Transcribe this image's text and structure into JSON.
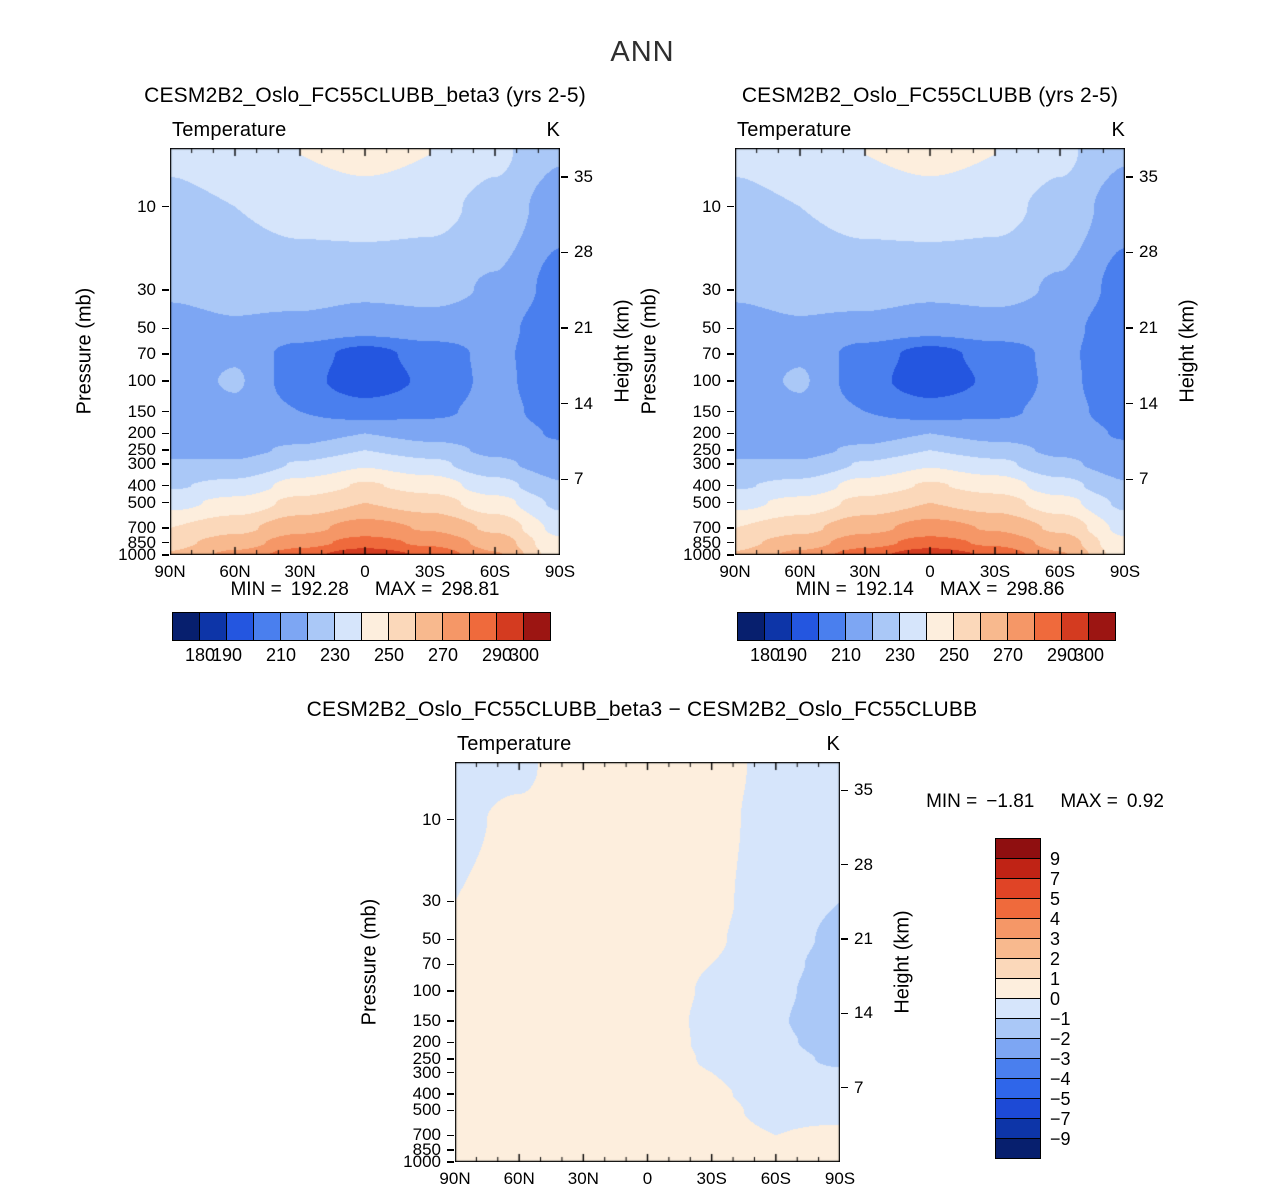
{
  "page": {
    "title": "ANN",
    "background": "#ffffff"
  },
  "panels": [
    {
      "title": "CESM2B2_Oslo_FC55CLUBB_beta3 (yrs 2-5)",
      "var_label": "Temperature",
      "units": "K",
      "min_label": "MIN =",
      "min": "192.28",
      "max_label": "MAX =",
      "max": "298.81"
    },
    {
      "title": "CESM2B2_Oslo_FC55CLUBB (yrs 2-5)",
      "var_label": "Temperature",
      "units": "K",
      "min_label": "MIN =",
      "min": "192.14",
      "max_label": "MAX =",
      "max": "298.86"
    },
    {
      "title": "CESM2B2_Oslo_FC55CLUBB_beta3 − CESM2B2_Oslo_FC55CLUBB",
      "var_label": "Temperature",
      "units": "K",
      "min_label": "MIN =",
      "min": "−1.81",
      "max_label": "MAX =",
      "max": "0.92"
    }
  ],
  "axes": {
    "pressure_label": "Pressure (mb)",
    "height_label": "Height (km)",
    "pressure_ticks": [
      10,
      30,
      50,
      70,
      100,
      150,
      200,
      250,
      300,
      400,
      500,
      700,
      850,
      1000
    ],
    "height_ticks": [
      35,
      28,
      21,
      14,
      7
    ],
    "lat_ticks": [
      {
        "lat": 90,
        "label": "90N"
      },
      {
        "lat": 60,
        "label": "60N"
      },
      {
        "lat": 30,
        "label": "30N"
      },
      {
        "lat": 0,
        "label": "0"
      },
      {
        "lat": -30,
        "label": "30S"
      },
      {
        "lat": -60,
        "label": "60S"
      },
      {
        "lat": -90,
        "label": "90S"
      }
    ]
  },
  "colorbars": {
    "main": {
      "boundaries": [
        180,
        190,
        200,
        210,
        220,
        230,
        240,
        250,
        260,
        270,
        280,
        290,
        300
      ],
      "tick_labels": [
        "180",
        "190",
        "210",
        "230",
        "250",
        "270",
        "290",
        "300"
      ],
      "tick_boundary_indices": [
        0,
        1,
        3,
        5,
        7,
        9,
        11,
        12
      ],
      "colors": [
        "#071f6e",
        "#0d35a8",
        "#2456e0",
        "#4a7fee",
        "#7da6f3",
        "#aac8f7",
        "#d6e5fb",
        "#fdeedd",
        "#fbd8ba",
        "#f8b98e",
        "#f59767",
        "#ef6a3c",
        "#d43b20",
        "#9c1512"
      ]
    },
    "diff": {
      "boundaries": [
        -9,
        -7,
        -5,
        -4,
        -3,
        -2,
        -1,
        0,
        1,
        2,
        3,
        4,
        5,
        7,
        9
      ],
      "tick_labels_top_to_bottom": [
        "9",
        "7",
        "5",
        "4",
        "3",
        "2",
        "1",
        "0",
        "−1",
        "−2",
        "−3",
        "−4",
        "−5",
        "−7",
        "−9"
      ],
      "colors": [
        "#071f6e",
        "#0d35a8",
        "#1d4ad6",
        "#2f66ea",
        "#4a7fee",
        "#7da6f3",
        "#aac8f7",
        "#d6e5fb",
        "#fdeedd",
        "#fbd8ba",
        "#f8b98e",
        "#f59767",
        "#ef6a3c",
        "#e04426",
        "#c02315",
        "#8f0f10"
      ]
    }
  },
  "chart_data": [
    {
      "id": "model_beta3",
      "type": "heatmap",
      "style": "filled-contour",
      "title": "CESM2B2_Oslo_FC55CLUBB_beta3 (yrs 2-5)",
      "variable": "Temperature",
      "units": "K",
      "x_axis": "latitude",
      "y_axis": "pressure (mb, log scale)",
      "x_tick_labels": [
        "90N",
        "60N",
        "30N",
        "0",
        "30S",
        "60S",
        "90S"
      ],
      "y_tick_labels": [
        10,
        30,
        50,
        70,
        100,
        150,
        200,
        250,
        300,
        400,
        500,
        700,
        850,
        1000
      ],
      "y2_tick_labels_km": [
        35,
        28,
        21,
        14,
        7
      ],
      "y_range_mb": [
        4.6,
        1000
      ],
      "min": 192.28,
      "max": 298.81,
      "lat_deg": [
        90,
        60,
        30,
        0,
        -30,
        -60,
        -90
      ],
      "pressure_mb": [
        5,
        10,
        30,
        50,
        70,
        100,
        150,
        200,
        250,
        300,
        400,
        500,
        700,
        850,
        1000
      ],
      "values": [
        [
          232,
          236,
          240,
          243,
          240,
          232,
          221
        ],
        [
          227,
          230,
          233,
          235,
          233,
          227,
          214
        ],
        [
          221,
          223,
          224,
          222,
          223,
          219,
          206
        ],
        [
          217,
          219,
          217,
          214,
          216,
          214,
          202
        ],
        [
          215,
          219,
          205,
          196,
          204,
          213,
          200
        ],
        [
          215,
          221,
          204,
          193,
          202,
          213,
          202
        ],
        [
          214,
          218,
          210,
          205,
          208,
          213,
          206
        ],
        [
          215,
          215,
          215,
          220,
          216,
          215,
          209
        ],
        [
          218,
          217,
          222,
          230,
          224,
          218,
          212
        ],
        [
          221,
          221,
          231,
          239,
          233,
          222,
          215
        ],
        [
          229,
          233,
          244,
          251,
          246,
          234,
          221
        ],
        [
          237,
          243,
          253,
          260,
          255,
          244,
          228
        ],
        [
          250,
          257,
          267,
          274,
          269,
          258,
          237
        ],
        [
          257,
          265,
          276,
          284,
          278,
          266,
          242
        ],
        [
          261,
          273,
          286,
          298,
          288,
          271,
          245
        ]
      ],
      "contour_levels": [
        180,
        190,
        200,
        210,
        220,
        230,
        240,
        250,
        260,
        270,
        280,
        290,
        300
      ],
      "colors": [
        "#071f6e",
        "#0d35a8",
        "#2456e0",
        "#4a7fee",
        "#7da6f3",
        "#aac8f7",
        "#d6e5fb",
        "#fdeedd",
        "#fbd8ba",
        "#f8b98e",
        "#f59767",
        "#ef6a3c",
        "#d43b20",
        "#9c1512"
      ]
    },
    {
      "id": "model_base",
      "type": "heatmap",
      "style": "filled-contour",
      "title": "CESM2B2_Oslo_FC55CLUBB (yrs 2-5)",
      "variable": "Temperature",
      "units": "K",
      "x_axis": "latitude",
      "y_axis": "pressure (mb, log scale)",
      "x_tick_labels": [
        "90N",
        "60N",
        "30N",
        "0",
        "30S",
        "60S",
        "90S"
      ],
      "y_tick_labels": [
        10,
        30,
        50,
        70,
        100,
        150,
        200,
        250,
        300,
        400,
        500,
        700,
        850,
        1000
      ],
      "y2_tick_labels_km": [
        35,
        28,
        21,
        14,
        7
      ],
      "y_range_mb": [
        4.6,
        1000
      ],
      "min": 192.14,
      "max": 298.86,
      "lat_deg": [
        90,
        60,
        30,
        0,
        -30,
        -60,
        -90
      ],
      "pressure_mb": [
        5,
        10,
        30,
        50,
        70,
        100,
        150,
        200,
        250,
        300,
        400,
        500,
        700,
        850,
        1000
      ],
      "values": [
        [
          232,
          236,
          240,
          243,
          240,
          232,
          221
        ],
        [
          227,
          230,
          233,
          235,
          233,
          227,
          214
        ],
        [
          221,
          223,
          224,
          222,
          223,
          219,
          206
        ],
        [
          217,
          219,
          217,
          214,
          216,
          214,
          202
        ],
        [
          215,
          219,
          205,
          196,
          204,
          213,
          200
        ],
        [
          215,
          221,
          204,
          193,
          202,
          213,
          202
        ],
        [
          214,
          218,
          210,
          205,
          208,
          213,
          206
        ],
        [
          215,
          215,
          215,
          220,
          216,
          215,
          209
        ],
        [
          218,
          217,
          222,
          230,
          224,
          218,
          212
        ],
        [
          221,
          221,
          231,
          239,
          233,
          222,
          215
        ],
        [
          229,
          233,
          244,
          251,
          246,
          234,
          221
        ],
        [
          237,
          243,
          253,
          260,
          255,
          244,
          228
        ],
        [
          250,
          257,
          267,
          274,
          269,
          258,
          237
        ],
        [
          257,
          265,
          276,
          284,
          278,
          266,
          242
        ],
        [
          261,
          273,
          286,
          298,
          288,
          271,
          245
        ]
      ],
      "contour_levels": [
        180,
        190,
        200,
        210,
        220,
        230,
        240,
        250,
        260,
        270,
        280,
        290,
        300
      ],
      "colors": [
        "#071f6e",
        "#0d35a8",
        "#2456e0",
        "#4a7fee",
        "#7da6f3",
        "#aac8f7",
        "#d6e5fb",
        "#fdeedd",
        "#fbd8ba",
        "#f8b98e",
        "#f59767",
        "#ef6a3c",
        "#d43b20",
        "#9c1512"
      ]
    },
    {
      "id": "difference",
      "type": "heatmap",
      "style": "filled-contour",
      "title": "CESM2B2_Oslo_FC55CLUBB_beta3 − CESM2B2_Oslo_FC55CLUBB",
      "variable": "Temperature difference",
      "units": "K",
      "x_axis": "latitude",
      "y_axis": "pressure (mb, log scale)",
      "x_tick_labels": [
        "90N",
        "60N",
        "30N",
        "0",
        "30S",
        "60S",
        "90S"
      ],
      "y_tick_labels": [
        10,
        30,
        50,
        70,
        100,
        150,
        200,
        250,
        300,
        400,
        500,
        700,
        850,
        1000
      ],
      "y2_tick_labels_km": [
        35,
        28,
        21,
        14,
        7
      ],
      "y_range_mb": [
        4.6,
        1000
      ],
      "min": -1.81,
      "max": 0.92,
      "lat_deg": [
        90,
        60,
        30,
        0,
        -30,
        -60,
        -90
      ],
      "pressure_mb": [
        5,
        10,
        30,
        50,
        70,
        100,
        150,
        200,
        250,
        300,
        400,
        500,
        700,
        850,
        1000
      ],
      "values": [
        [
          -0.2,
          -0.1,
          0.4,
          0.6,
          0.4,
          -0.3,
          -0.6
        ],
        [
          -0.1,
          0.1,
          0.4,
          0.5,
          0.3,
          -0.4,
          -0.8
        ],
        [
          0.0,
          0.2,
          0.3,
          0.4,
          0.2,
          -0.5,
          -1.0
        ],
        [
          0.1,
          0.2,
          0.3,
          0.4,
          0.1,
          -0.6,
          -1.2
        ],
        [
          0.1,
          0.2,
          0.3,
          0.4,
          0.0,
          -0.7,
          -1.4
        ],
        [
          0.1,
          0.3,
          0.4,
          0.5,
          -0.1,
          -0.8,
          -1.6
        ],
        [
          0.2,
          0.3,
          0.4,
          0.5,
          -0.2,
          -0.9,
          -1.8
        ],
        [
          0.3,
          0.4,
          0.5,
          0.6,
          -0.2,
          -0.8,
          -1.5
        ],
        [
          0.3,
          0.4,
          0.5,
          0.6,
          -0.1,
          -0.6,
          -1.2
        ],
        [
          0.3,
          0.4,
          0.5,
          0.6,
          0.0,
          -0.5,
          -0.9
        ],
        [
          0.4,
          0.4,
          0.5,
          0.6,
          0.1,
          -0.3,
          -0.6
        ],
        [
          0.4,
          0.5,
          0.5,
          0.6,
          0.2,
          -0.2,
          -0.3
        ],
        [
          0.5,
          0.5,
          0.6,
          0.7,
          0.3,
          0.0,
          0.2
        ],
        [
          0.5,
          0.6,
          0.6,
          0.8,
          0.3,
          0.1,
          0.4
        ],
        [
          0.6,
          0.6,
          0.7,
          0.9,
          0.4,
          0.2,
          0.5
        ]
      ],
      "contour_levels": [
        -9,
        -7,
        -5,
        -4,
        -3,
        -2,
        -1,
        0,
        1,
        2,
        3,
        4,
        5,
        7,
        9
      ],
      "colors": [
        "#071f6e",
        "#0d35a8",
        "#1d4ad6",
        "#2f66ea",
        "#4a7fee",
        "#7da6f3",
        "#aac8f7",
        "#d6e5fb",
        "#fdeedd",
        "#fbd8ba",
        "#f8b98e",
        "#f59767",
        "#ef6a3c",
        "#e04426",
        "#c02315",
        "#8f0f10"
      ]
    }
  ]
}
